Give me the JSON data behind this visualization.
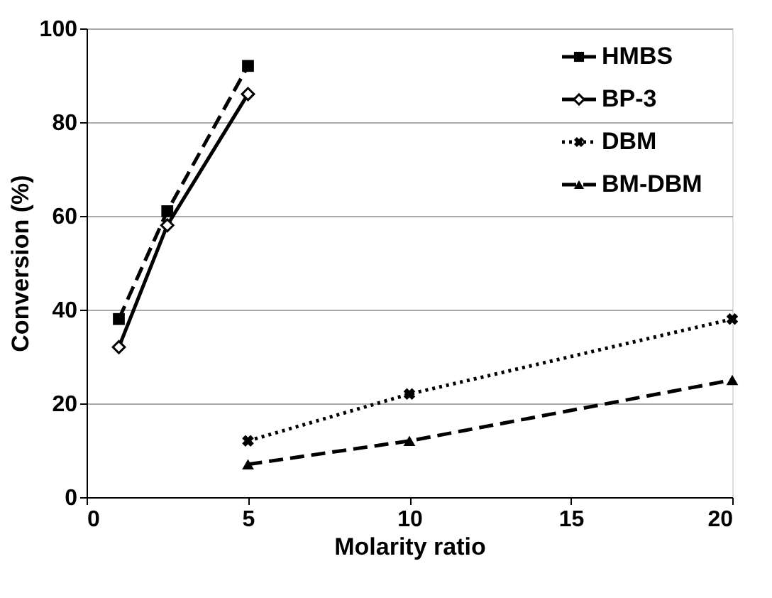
{
  "chart_data": {
    "type": "line",
    "xlabel": "Molarity ratio",
    "ylabel": "Conversion (%)",
    "xlim": [
      0,
      20
    ],
    "xticks": [
      0,
      5,
      10,
      15,
      20
    ],
    "ylim": [
      0,
      100
    ],
    "yticks": [
      0,
      20,
      40,
      60,
      80,
      100
    ],
    "grid": "y",
    "legend": "top right",
    "series": [
      {
        "name": "HMBS",
        "color": "#000000",
        "x": [
          1,
          2.5,
          5
        ],
        "values": [
          38,
          61,
          92
        ],
        "marker": "square",
        "line_style": "dashed"
      },
      {
        "name": "BP-3",
        "color": "#000000",
        "x": [
          1,
          2.5,
          5
        ],
        "values": [
          32,
          58,
          86
        ],
        "marker": "diamond",
        "line_style": "solid"
      },
      {
        "name": "DBM",
        "color": "#000000",
        "x": [
          5,
          10,
          20
        ],
        "values": [
          12,
          22,
          38
        ],
        "marker": "cross",
        "line_style": "dotted"
      },
      {
        "name": "BM-DBM",
        "color": "#000000",
        "x": [
          5,
          10,
          20
        ],
        "values": [
          7,
          12,
          25
        ],
        "marker": "triangle",
        "line_style": "dashed"
      }
    ]
  }
}
